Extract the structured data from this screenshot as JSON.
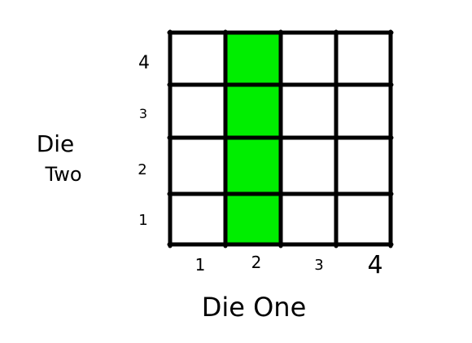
{
  "diagram": {
    "x_axis_label": "Die One",
    "y_axis_label_line1": "Die",
    "y_axis_label_line2": "Two",
    "x_ticks": [
      "1",
      "2",
      "3",
      "4"
    ],
    "y_ticks": [
      "1",
      "2",
      "3",
      "4"
    ],
    "highlighted_column": "2",
    "highlight_color": "#00ee00",
    "grid_color": "#000000",
    "cell_color": "#ffffff"
  }
}
